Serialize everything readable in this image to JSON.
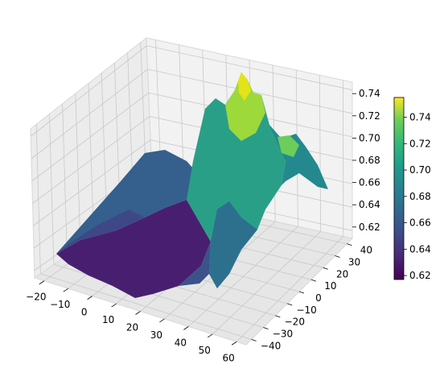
{
  "chart_data": {
    "type": "surface3d",
    "title": "",
    "xlabel": "",
    "ylabel": "",
    "zlabel": "",
    "colormap": "viridis",
    "grid": true,
    "colorbar": {
      "position": "right",
      "range": [
        0.617,
        0.755
      ],
      "ticks": [
        "0.62",
        "0.64",
        "0.66",
        "0.68",
        "0.70",
        "0.72",
        "0.74"
      ]
    },
    "x_axis": {
      "ticks": [
        "−20",
        "−10",
        "0",
        "10",
        "20",
        "30",
        "40",
        "50",
        "60"
      ],
      "range": [
        -22,
        62
      ]
    },
    "y_axis": {
      "ticks": [
        "−40",
        "−30",
        "−20",
        "−10",
        "0",
        "10",
        "20",
        "30",
        "40"
      ],
      "range": [
        -44,
        44
      ]
    },
    "z_axis": {
      "ticks": [
        "0.62",
        "0.64",
        "0.66",
        "0.68",
        "0.70",
        "0.72",
        "0.74"
      ],
      "range": [
        0.617,
        0.755
      ]
    },
    "surface_description_points": [
      {
        "x": -18,
        "y": 0,
        "z": 0.625
      },
      {
        "x": 0,
        "y": 0,
        "z": 0.625
      },
      {
        "x": 10,
        "y": 0,
        "z": 0.64
      },
      {
        "x": 20,
        "y": 0,
        "z": 0.7
      },
      {
        "x": 25,
        "y": 0,
        "z": 0.75
      },
      {
        "x": 30,
        "y": 0,
        "z": 0.7
      },
      {
        "x": 45,
        "y": 0,
        "z": 0.71
      },
      {
        "x": 60,
        "y": 0,
        "z": 0.68
      }
    ]
  }
}
